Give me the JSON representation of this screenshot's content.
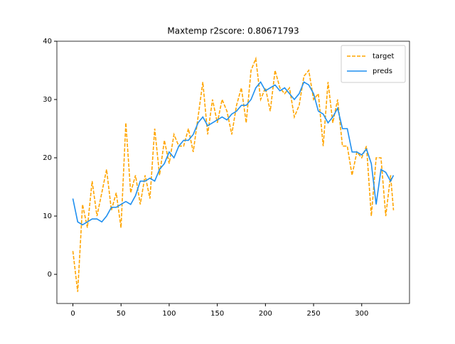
{
  "chart_data": {
    "type": "line",
    "title": "Maxtemp r2score: 0.80671793",
    "x": [
      0,
      5,
      10,
      15,
      20,
      25,
      30,
      35,
      40,
      45,
      50,
      55,
      60,
      65,
      70,
      75,
      80,
      85,
      90,
      95,
      100,
      105,
      110,
      115,
      120,
      125,
      130,
      135,
      140,
      145,
      150,
      155,
      160,
      165,
      170,
      175,
      180,
      185,
      190,
      195,
      200,
      205,
      210,
      215,
      220,
      225,
      230,
      235,
      240,
      245,
      250,
      255,
      260,
      265,
      270,
      275,
      280,
      285,
      290,
      295,
      300,
      305,
      310,
      315,
      320,
      325,
      330,
      333
    ],
    "series": [
      {
        "name": "target",
        "color": "#ffa500",
        "dash": true,
        "values": [
          4,
          -3,
          12,
          8,
          16,
          10,
          14,
          18,
          11,
          14,
          8,
          26,
          14,
          17,
          12,
          17,
          13,
          25,
          17,
          23,
          19,
          24,
          22,
          22,
          25,
          21,
          27,
          33,
          24,
          30,
          26,
          30,
          28,
          24,
          29,
          32,
          26,
          35,
          37,
          30,
          32,
          28,
          35,
          32,
          31,
          32,
          27,
          29,
          34,
          35,
          30,
          31,
          22,
          33,
          26,
          30,
          22,
          22,
          17,
          21,
          20,
          22,
          10,
          20,
          20,
          10,
          17,
          11
        ]
      },
      {
        "name": "preds",
        "color": "#1f8fef",
        "dash": false,
        "values": [
          13,
          9,
          8.5,
          9,
          9.5,
          9.5,
          9,
          10,
          11.5,
          11.5,
          12,
          12.5,
          12,
          13.5,
          16,
          16,
          16.5,
          16,
          18,
          19,
          21,
          20,
          22,
          23,
          23,
          24,
          26,
          27,
          25.5,
          26,
          26.5,
          27,
          26.5,
          27.5,
          28,
          29,
          29,
          30,
          32,
          33,
          31.5,
          32,
          32.5,
          31.5,
          32,
          31,
          30,
          31,
          33,
          32.5,
          31,
          28,
          27.5,
          26,
          27,
          28.5,
          25,
          25,
          21,
          21,
          20.5,
          21.5,
          19,
          12,
          18,
          17.5,
          16,
          17
        ]
      }
    ],
    "xlim": [
      -16.65,
      349.65
    ],
    "ylim": [
      -5,
      40
    ],
    "xticks": [
      0,
      50,
      100,
      150,
      200,
      250,
      300
    ],
    "yticks": [
      0,
      10,
      20,
      30,
      40
    ],
    "legend": "upper right"
  }
}
